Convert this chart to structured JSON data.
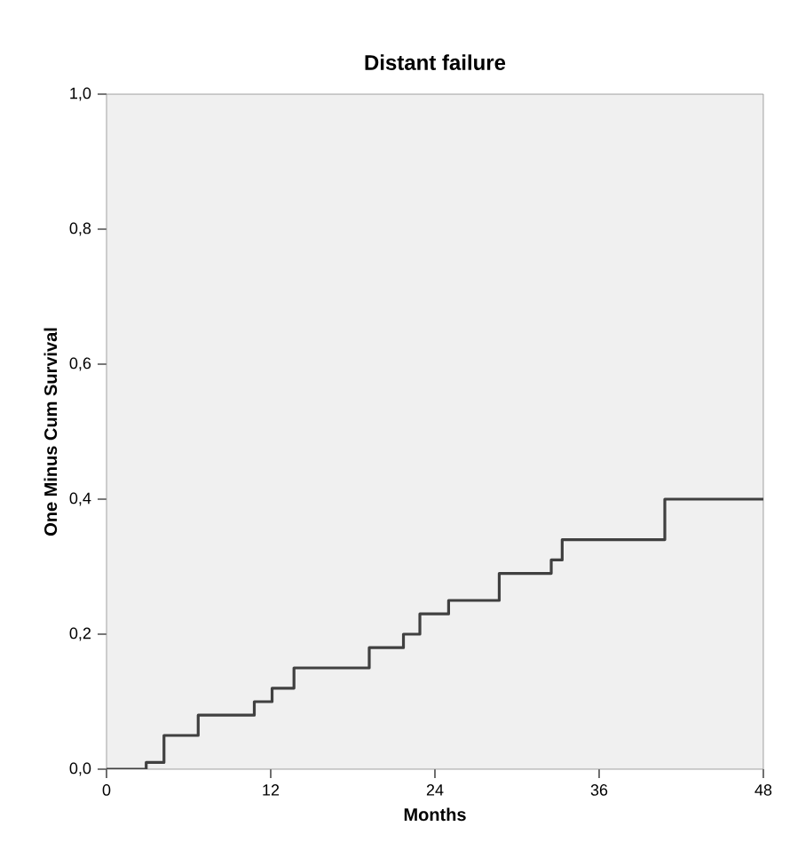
{
  "chart_data": {
    "type": "step",
    "title": "Distant failure",
    "xlabel": "Months",
    "ylabel": "One Minus Cum Survival",
    "xlim": [
      0,
      48
    ],
    "xticks": [
      0,
      12,
      24,
      36,
      48
    ],
    "ylim": [
      0,
      1
    ],
    "yticks": [
      {
        "value": 0,
        "label": "0,0"
      },
      {
        "value": 0.2,
        "label": "0,2"
      },
      {
        "value": 0.4,
        "label": "0,4"
      },
      {
        "value": 0.6,
        "label": "0,6"
      },
      {
        "value": 0.8,
        "label": "0,8"
      },
      {
        "value": 1,
        "label": "1,0"
      }
    ],
    "x": [
      0,
      2.9,
      4.2,
      6.7,
      10.8,
      12.1,
      13.7,
      16.7,
      19.2,
      21.7,
      22.9,
      25,
      28.1,
      28.7,
      32.1,
      32.5,
      33.3,
      40.8,
      48
    ],
    "values": [
      0,
      0.01,
      0.05,
      0.08,
      0.1,
      0.12,
      0.15,
      0.15,
      0.18,
      0.2,
      0.23,
      0.25,
      0.25,
      0.29,
      0.29,
      0.31,
      0.34,
      0.4,
      0.4
    ],
    "color": "#404040",
    "grid": false
  }
}
